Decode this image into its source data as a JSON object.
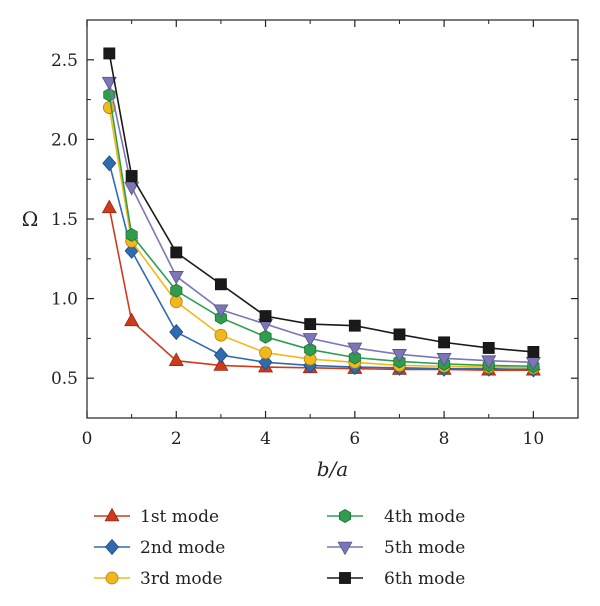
{
  "chart_data": {
    "type": "line",
    "title": "",
    "xlabel": "b/a",
    "ylabel": "Ω",
    "xlim": [
      0,
      11
    ],
    "ylim": [
      0.25,
      2.75
    ],
    "xticks": [
      0,
      2,
      4,
      6,
      8,
      10
    ],
    "yticks": [
      0.5,
      1.0,
      1.5,
      2.0,
      2.5
    ],
    "xtick_labels": [
      "0",
      "2",
      "4",
      "6",
      "8",
      "10"
    ],
    "ytick_labels": [
      "0.5",
      "1.0",
      "1.5",
      "2.0",
      "2.5"
    ],
    "grid": false,
    "legend_position": "below",
    "x": [
      0.5,
      1,
      2,
      3,
      4,
      5,
      6,
      7,
      8,
      9,
      10
    ],
    "series": [
      {
        "name": "1st mode",
        "marker": "triangle-up",
        "color": "#d03a1c",
        "values": [
          1.57,
          0.86,
          0.61,
          0.58,
          0.57,
          0.565,
          0.56,
          0.555,
          0.555,
          0.55,
          0.55
        ]
      },
      {
        "name": "2nd mode",
        "marker": "diamond",
        "color": "#2e6bb0",
        "values": [
          1.85,
          1.3,
          0.79,
          0.645,
          0.6,
          0.58,
          0.57,
          0.565,
          0.56,
          0.56,
          0.555
        ]
      },
      {
        "name": "3rd mode",
        "marker": "circle",
        "color": "#f2b81b",
        "values": [
          2.2,
          1.36,
          0.98,
          0.77,
          0.66,
          0.62,
          0.6,
          0.58,
          0.575,
          0.57,
          0.565
        ]
      },
      {
        "name": "4th mode",
        "marker": "hexagon",
        "color": "#2e9e4e",
        "values": [
          2.28,
          1.4,
          1.05,
          0.88,
          0.76,
          0.68,
          0.63,
          0.605,
          0.59,
          0.58,
          0.575
        ]
      },
      {
        "name": "5th mode",
        "marker": "triangle-down",
        "color": "#7b76b8",
        "values": [
          2.36,
          1.7,
          1.14,
          0.93,
          0.84,
          0.75,
          0.69,
          0.65,
          0.625,
          0.61,
          0.6
        ]
      },
      {
        "name": "6th mode",
        "marker": "square",
        "color": "#1a1a1a",
        "values": [
          2.54,
          1.77,
          1.29,
          1.09,
          0.89,
          0.84,
          0.83,
          0.775,
          0.725,
          0.69,
          0.665
        ]
      }
    ]
  }
}
